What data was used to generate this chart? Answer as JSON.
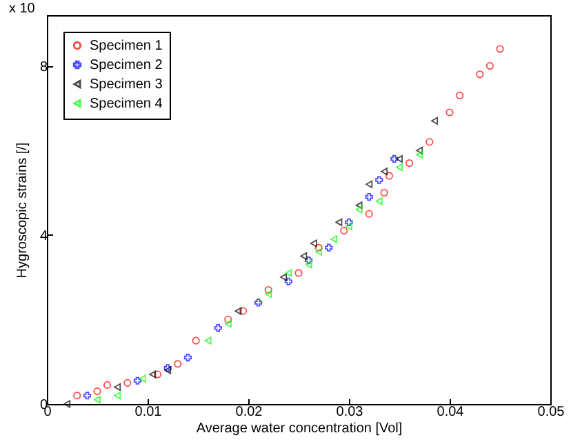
{
  "chart_data": {
    "type": "scatter",
    "xlabel": "Average water concentration [Vol]",
    "ylabel": "Hygroscopic strains [/]",
    "annotations": [
      "x 10"
    ],
    "xlim": [
      0,
      0.05
    ],
    "xticks": [
      0,
      0.01,
      0.02,
      0.03,
      0.04,
      0.05
    ],
    "ylim": [
      0,
      9.2
    ],
    "yticks": [
      0,
      4,
      8
    ],
    "grid": false,
    "legend": "top left",
    "series": [
      {
        "name": "Specimen 1",
        "color": "#ff0000",
        "marker": "circle",
        "x": [
          0.003,
          0.005,
          0.006,
          0.008,
          0.011,
          0.013,
          0.0148,
          0.018,
          0.0195,
          0.022,
          0.025,
          0.027,
          0.0295,
          0.032,
          0.0335,
          0.034,
          0.036,
          0.038,
          0.04,
          0.041,
          0.043,
          0.044,
          0.045
        ],
        "values": [
          0.2,
          0.3,
          0.45,
          0.5,
          0.7,
          0.95,
          1.5,
          2.0,
          2.2,
          2.7,
          3.1,
          3.7,
          4.1,
          4.5,
          5.0,
          5.4,
          5.7,
          6.2,
          6.9,
          7.3,
          7.8,
          8.0,
          8.4
        ]
      },
      {
        "name": "Specimen 2",
        "color": "#0000ff",
        "marker": "cross",
        "x": [
          0.004,
          0.009,
          0.012,
          0.014,
          0.017,
          0.021,
          0.024,
          0.026,
          0.028,
          0.03,
          0.032,
          0.033,
          0.0345
        ],
        "values": [
          0.2,
          0.55,
          0.85,
          1.1,
          1.8,
          2.4,
          2.9,
          3.4,
          3.7,
          4.3,
          4.9,
          5.3,
          5.8
        ]
      },
      {
        "name": "Specimen 3",
        "color": "#000000",
        "marker": "triangle",
        "x": [
          0.002,
          0.007,
          0.0105,
          0.012,
          0.019,
          0.0235,
          0.0255,
          0.0265,
          0.029,
          0.031,
          0.032,
          0.0335,
          0.035,
          0.037,
          0.0385
        ],
        "values": [
          0.0,
          0.4,
          0.7,
          0.8,
          2.2,
          3.0,
          3.5,
          3.8,
          4.3,
          4.7,
          5.2,
          5.5,
          5.8,
          6.0,
          6.7
        ]
      },
      {
        "name": "Specimen 4",
        "color": "#00ff00",
        "marker": "triangle",
        "x": [
          0.005,
          0.007,
          0.0095,
          0.016,
          0.018,
          0.022,
          0.024,
          0.026,
          0.027,
          0.0285,
          0.03,
          0.031,
          0.033,
          0.035,
          0.037
        ],
        "values": [
          0.1,
          0.2,
          0.6,
          1.5,
          1.9,
          2.6,
          3.1,
          3.3,
          3.6,
          3.9,
          4.2,
          4.6,
          4.8,
          5.6,
          5.9
        ]
      }
    ]
  }
}
